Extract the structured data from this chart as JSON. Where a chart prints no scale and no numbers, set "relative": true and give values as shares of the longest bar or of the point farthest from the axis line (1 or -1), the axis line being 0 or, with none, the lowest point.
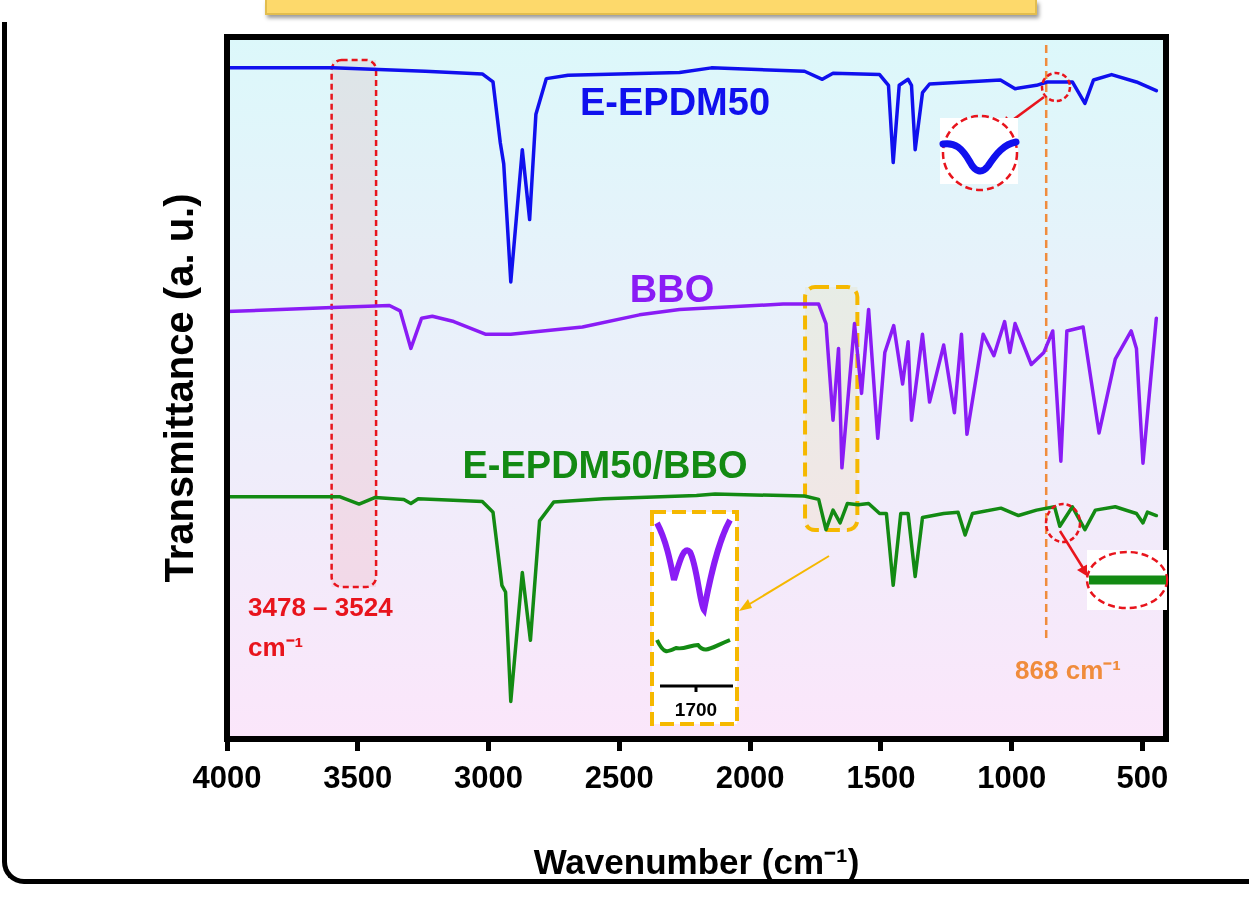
{
  "chart_data": {
    "type": "line",
    "xlabel": "Wavenumber (cm⁻¹)",
    "ylabel": "Transmittance (a. u.)",
    "relative": true,
    "xlim": [
      4000,
      410
    ],
    "xticks": [
      4000,
      3500,
      3000,
      2500,
      2000,
      1500,
      1000,
      500
    ],
    "legend": false,
    "marker": "none",
    "line_style": "solid",
    "series": [
      {
        "name": "E-EPDM50",
        "color": "#1010ee",
        "x": [
          4000,
          3597,
          3242,
          3024,
          2983,
          2955,
          2942,
          2915,
          2871,
          2843,
          2819,
          2779,
          2696,
          2270,
          2148,
          1792,
          1724,
          1683,
          1505,
          1471,
          1453,
          1430,
          1396,
          1383,
          1369,
          1341,
          1314,
          1178,
          1043,
          987,
          905,
          864,
          768,
          720,
          687,
          618,
          523,
          447
        ],
        "values": [
          1,
          1,
          0.995,
          0.991,
          0.979,
          0.888,
          0.857,
          0.681,
          0.878,
          0.774,
          0.931,
          0.984,
          0.989,
          0.993,
          1,
          0.995,
          0.983,
          0.992,
          0.99,
          0.974,
          0.859,
          0.974,
          0.983,
          0.974,
          0.878,
          0.963,
          0.976,
          0.979,
          0.982,
          0.969,
          0.974,
          0.979,
          0.979,
          0.947,
          0.982,
          0.99,
          0.979,
          0.966
        ]
      },
      {
        "name": "BBO",
        "color": "#8a1cf5",
        "x": [
          4000,
          3597,
          3379,
          3338,
          3297,
          3256,
          3215,
          3133,
          3010,
          2915,
          2641,
          2423,
          2270,
          1874,
          1738,
          1710,
          1683,
          1662,
          1649,
          1601,
          1574,
          1547,
          1512,
          1485,
          1451,
          1417,
          1396,
          1383,
          1341,
          1314,
          1260,
          1219,
          1192,
          1171,
          1109,
          1068,
          1027,
          1007,
          987,
          925,
          877,
          843,
          812,
          789,
          727,
          666,
          604,
          543,
          523,
          498,
          447
        ],
        "values": [
          0.637,
          0.643,
          0.646,
          0.638,
          0.582,
          0.627,
          0.63,
          0.622,
          0.603,
          0.603,
          0.614,
          0.632,
          0.64,
          0.648,
          0.648,
          0.619,
          0.475,
          0.582,
          0.404,
          0.619,
          0.515,
          0.64,
          0.448,
          0.576,
          0.616,
          0.529,
          0.592,
          0.475,
          0.603,
          0.502,
          0.587,
          0.486,
          0.603,
          0.454,
          0.603,
          0.571,
          0.622,
          0.576,
          0.619,
          0.558,
          0.576,
          0.608,
          0.414,
          0.608,
          0.614,
          0.456,
          0.566,
          0.608,
          0.582,
          0.411,
          0.627
        ]
      },
      {
        "name": "E-EPDM50/BBO",
        "color": "#138a13",
        "x": [
          4000,
          3570,
          3495,
          3433,
          3324,
          3297,
          3269,
          3024,
          2983,
          2949,
          2935,
          2915,
          2871,
          2840,
          2805,
          2751,
          2560,
          2205,
          2134,
          1792,
          1738,
          1710,
          1683,
          1656,
          1628,
          1587,
          1547,
          1505,
          1479,
          1453,
          1424,
          1396,
          1369,
          1341,
          1260,
          1205,
          1178,
          1150,
          1041,
          974,
          905,
          836,
          816,
          768,
          720,
          680,
          604,
          523,
          498,
          481,
          447
        ],
        "values": [
          0.361,
          0.361,
          0.35,
          0.36,
          0.357,
          0.351,
          0.358,
          0.354,
          0.338,
          0.229,
          0.219,
          0.056,
          0.248,
          0.147,
          0.325,
          0.353,
          0.358,
          0.363,
          0.365,
          0.362,
          0.357,
          0.312,
          0.341,
          0.322,
          0.351,
          0.349,
          0.351,
          0.336,
          0.336,
          0.229,
          0.336,
          0.336,
          0.242,
          0.33,
          0.336,
          0.338,
          0.304,
          0.336,
          0.344,
          0.333,
          0.341,
          0.346,
          0.317,
          0.346,
          0.312,
          0.341,
          0.346,
          0.336,
          0.322,
          0.338,
          0.333
        ]
      }
    ],
    "bands": [
      {
        "axis": "x",
        "from": 3600,
        "to": 3430,
        "label": "3478 – 3524 cm⁻¹",
        "color": "#e8141c"
      },
      {
        "axis": "x",
        "from": 1790,
        "to": 1590,
        "color": "#f5b800"
      }
    ],
    "ref_lines": [
      {
        "axis": "x",
        "value": 868,
        "label": "868 cm⁻¹",
        "color": "#f08c3c",
        "line_style": "dashed"
      }
    ],
    "annotations": [
      "1700"
    ]
  }
}
